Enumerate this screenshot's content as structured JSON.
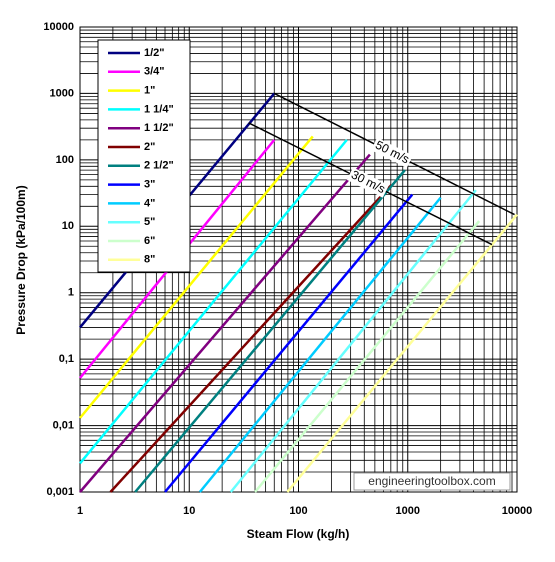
{
  "chart_data": {
    "type": "line",
    "x_label": "Steam Flow (kg/h)",
    "y_label": "Pressure Drop (kPa/100m)",
    "log_x": true,
    "log_y": true,
    "grid": true,
    "minor_grid": true,
    "xlim": [
      1,
      10000
    ],
    "ylim": [
      0.001,
      10000
    ],
    "xticks": [
      1,
      10,
      100,
      1000,
      10000
    ],
    "yticks": [
      {
        "value": 0.001,
        "label": "0,001"
      },
      {
        "value": 0.01,
        "label": "0,01"
      },
      {
        "value": 0.1,
        "label": "0,1"
      },
      1,
      10,
      100,
      1000,
      10000
    ],
    "legend": "top-left",
    "series": [
      {
        "name": "1/2\"",
        "color": "#000080",
        "x": [
          1,
          60
        ],
        "values": [
          0.3,
          1000
        ]
      },
      {
        "name": "3/4\"",
        "color": "#ff00ff",
        "x": [
          1,
          60
        ],
        "values": [
          0.052,
          200
        ]
      },
      {
        "name": "1\"",
        "color": "#ffff00",
        "x": [
          1,
          135
        ],
        "values": [
          0.013,
          225
        ]
      },
      {
        "name": "1 1/4\"",
        "color": "#00ffff",
        "x": [
          1,
          277
        ],
        "values": [
          0.0027,
          200
        ]
      },
      {
        "name": "1 1/2\"",
        "color": "#800080",
        "x": [
          1,
          450
        ],
        "values": [
          0.001,
          120
        ]
      },
      {
        "name": "2\"",
        "color": "#800000",
        "x": [
          1.9,
          710
        ],
        "values": [
          0.001,
          42
        ]
      },
      {
        "name": "2 1/2\"",
        "color": "#008080",
        "x": [
          3.2,
          940
        ],
        "values": [
          0.001,
          70
        ]
      },
      {
        "name": "3\"",
        "color": "#0000ff",
        "x": [
          6,
          1100
        ],
        "values": [
          0.001,
          30
        ]
      },
      {
        "name": "4\"",
        "color": "#00ccff",
        "x": [
          12.5,
          2000
        ],
        "values": [
          0.001,
          27
        ]
      },
      {
        "name": "5\"",
        "color": "#66ffff",
        "x": [
          24,
          4200
        ],
        "values": [
          0.001,
          35
        ]
      },
      {
        "name": "6\"",
        "color": "#ccffcc",
        "x": [
          40,
          4500
        ],
        "values": [
          0.001,
          12
        ]
      },
      {
        "name": "8\"",
        "color": "#ffff99",
        "x": [
          79,
          10000
        ],
        "values": [
          0.001,
          15
        ]
      }
    ],
    "annotations": [
      {
        "text": "50 m/s",
        "x": [
          60,
          9500
        ],
        "values": [
          1000,
          15
        ]
      },
      {
        "text": "30 m/s",
        "x": [
          35,
          5900
        ],
        "values": [
          360,
          5.3
        ]
      }
    ],
    "watermark": "engineeringtoolbox.com"
  }
}
